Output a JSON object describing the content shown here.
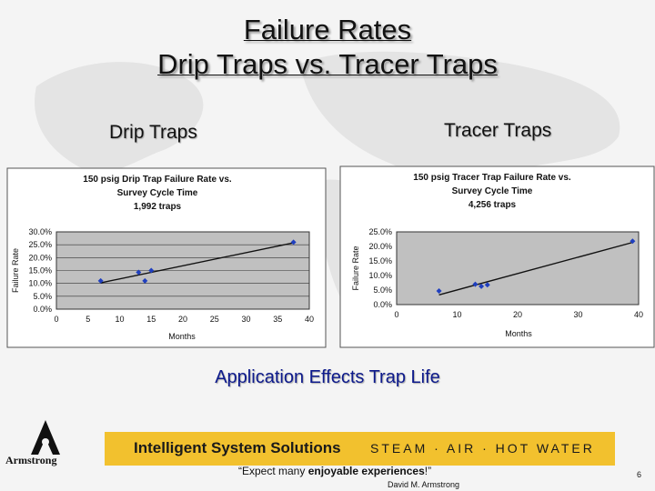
{
  "slide": {
    "title_line1": "Failure Rates",
    "title_line2": "Drip Traps vs. Tracer Traps",
    "subtitle_left": "Drip Traps",
    "subtitle_right": "Tracer Traps",
    "effects": "Application Effects Trap Life",
    "banner_left": "Intelligent System Solutions",
    "banner_right": "STEAM · AIR · HOT WATER",
    "quote_prefix": "“Expect many ",
    "quote_bold": "enjoyable experiences",
    "quote_suffix": "!”",
    "author": "David M. Armstrong",
    "page_number": "6",
    "logo_text": "Armstrong"
  },
  "colors": {
    "title": "#111111",
    "effects": "#0d1a8c",
    "banner": "#f2c12e",
    "point": "#1f3fbf",
    "plot_bg": "#c0c0c0"
  },
  "chart_data": [
    {
      "type": "scatter",
      "title_lines": [
        "150 psig Drip Trap Failure Rate vs.",
        "Survey Cycle Time",
        "1,992 traps"
      ],
      "xlabel": "Months",
      "ylabel": "Failure Rate",
      "xlim": [
        0,
        40
      ],
      "ylim": [
        0,
        0.3
      ],
      "x_ticks": [
        0,
        5,
        10,
        15,
        20,
        25,
        30,
        35,
        40
      ],
      "y_ticks": [
        0,
        0.05,
        0.1,
        0.15,
        0.2,
        0.25,
        0.3
      ],
      "y_tick_labels": [
        "0.0%",
        "5.0%",
        "10.0%",
        "15.0%",
        "20.0%",
        "25.0%",
        "30.0%"
      ],
      "grid": true,
      "trendline": true,
      "points": [
        {
          "x": 7,
          "y": 0.11
        },
        {
          "x": 13,
          "y": 0.143
        },
        {
          "x": 14,
          "y": 0.11
        },
        {
          "x": 15,
          "y": 0.15
        },
        {
          "x": 37.5,
          "y": 0.26
        }
      ]
    },
    {
      "type": "scatter",
      "title_lines": [
        "150 psig Tracer Trap Failure Rate vs.",
        "Survey Cycle Time",
        "4,256 traps"
      ],
      "xlabel": "Months",
      "ylabel": "Failure Rate",
      "xlim": [
        0,
        40
      ],
      "ylim": [
        0,
        0.25
      ],
      "x_ticks": [
        0,
        10,
        20,
        30,
        40
      ],
      "y_ticks": [
        0,
        0.05,
        0.1,
        0.15,
        0.2,
        0.25
      ],
      "y_tick_labels": [
        "0.0%",
        "5.0%",
        "10.0%",
        "15.0%",
        "20.0%",
        "25.0%"
      ],
      "grid": false,
      "trendline": true,
      "points": [
        {
          "x": 7,
          "y": 0.047
        },
        {
          "x": 13,
          "y": 0.07
        },
        {
          "x": 14,
          "y": 0.063
        },
        {
          "x": 15,
          "y": 0.068
        },
        {
          "x": 39,
          "y": 0.218
        }
      ]
    }
  ]
}
